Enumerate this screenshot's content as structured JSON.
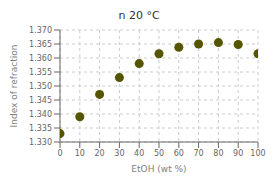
{
  "chart_data": {
    "type": "scatter",
    "title": "n 20 °C",
    "xlabel": "EtOH (wt %)",
    "ylabel": "Index of refraction",
    "x": [
      0,
      10,
      20,
      30,
      40,
      50,
      60,
      70,
      80,
      90,
      100
    ],
    "values": [
      1.333,
      1.339,
      1.347,
      1.353,
      1.358,
      1.3615,
      1.3638,
      1.365,
      1.3655,
      1.3648,
      1.3615
    ],
    "xlim": [
      0,
      100
    ],
    "ylim": [
      1.33,
      1.37
    ],
    "xticks": [
      0,
      10,
      20,
      30,
      40,
      50,
      60,
      70,
      80,
      90,
      100
    ],
    "yticks": [
      {
        "value": 1.33,
        "label": "1.330"
      },
      {
        "value": 1.335,
        "label": "1.335"
      },
      {
        "value": 1.34,
        "label": "1.340"
      },
      {
        "value": 1.345,
        "label": "1.345"
      },
      {
        "value": 1.35,
        "label": "1.350"
      },
      {
        "value": 1.355,
        "label": "1.355"
      },
      {
        "value": 1.36,
        "label": "1.360"
      },
      {
        "value": 1.365,
        "label": "1.365"
      },
      {
        "value": 1.37,
        "label": "1.370"
      }
    ],
    "color": "#555500",
    "marker": "circle",
    "grid": true
  }
}
